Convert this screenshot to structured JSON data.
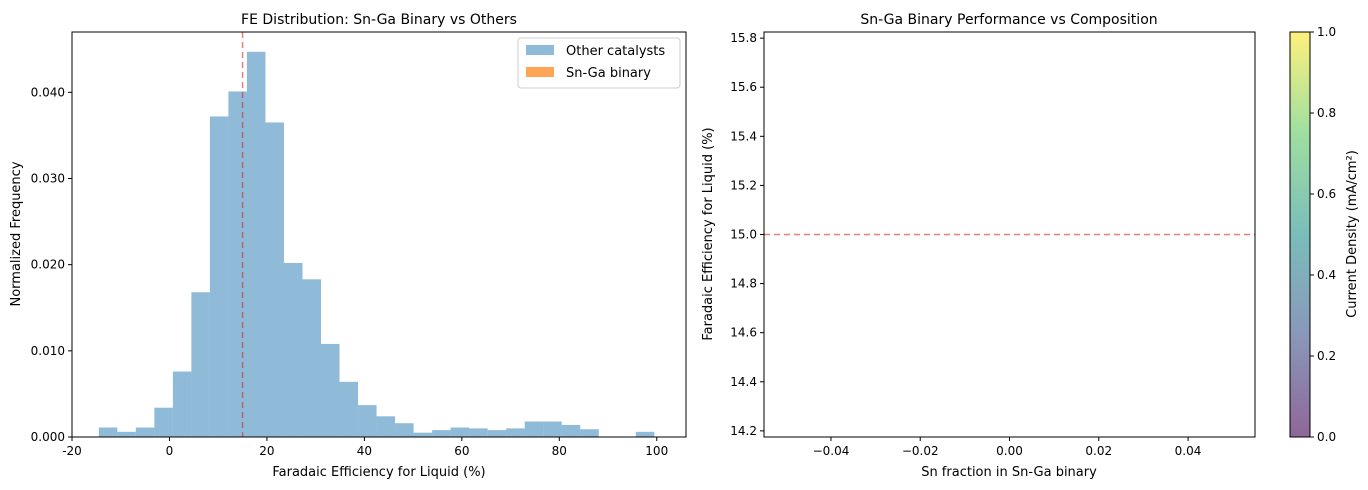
{
  "chart_data": [
    {
      "type": "bar",
      "title": "FE Distribution: Sn-Ga Binary vs Others",
      "xlabel": "Faradaic Efficiency for Liquid (%)",
      "ylabel": "Normalized Frequency",
      "xlim": [
        -20,
        106
      ],
      "ylim": [
        0,
        0.047
      ],
      "xticks": [
        -20,
        0,
        20,
        40,
        60,
        80,
        100
      ],
      "yticks": [
        0.0,
        0.01,
        0.02,
        0.03,
        0.04
      ],
      "ytick_labels": [
        "0.000",
        "0.010",
        "0.020",
        "0.030",
        "0.040"
      ],
      "grid": false,
      "legend_position": "top-right",
      "bin_width": 3.8,
      "bins": [
        {
          "x0": -14.5,
          "value": 0.0011
        },
        {
          "x0": -10.7,
          "value": 0.0006
        },
        {
          "x0": -6.9,
          "value": 0.0011
        },
        {
          "x0": -3.1,
          "value": 0.0034
        },
        {
          "x0": 0.7,
          "value": 0.0076
        },
        {
          "x0": 4.5,
          "value": 0.0168
        },
        {
          "x0": 8.3,
          "value": 0.0372
        },
        {
          "x0": 12.1,
          "value": 0.0401
        },
        {
          "x0": 15.9,
          "value": 0.0447
        },
        {
          "x0": 19.7,
          "value": 0.0365
        },
        {
          "x0": 23.5,
          "value": 0.0202
        },
        {
          "x0": 27.3,
          "value": 0.0183
        },
        {
          "x0": 31.1,
          "value": 0.0108
        },
        {
          "x0": 34.9,
          "value": 0.0064
        },
        {
          "x0": 38.7,
          "value": 0.0037
        },
        {
          "x0": 42.5,
          "value": 0.0024
        },
        {
          "x0": 46.3,
          "value": 0.0016
        },
        {
          "x0": 50.1,
          "value": 0.0005
        },
        {
          "x0": 53.9,
          "value": 0.0008
        },
        {
          "x0": 57.7,
          "value": 0.0011
        },
        {
          "x0": 61.5,
          "value": 0.001
        },
        {
          "x0": 65.3,
          "value": 0.0008
        },
        {
          "x0": 69.1,
          "value": 0.001
        },
        {
          "x0": 72.9,
          "value": 0.0018
        },
        {
          "x0": 76.7,
          "value": 0.0018
        },
        {
          "x0": 80.5,
          "value": 0.0014
        },
        {
          "x0": 84.3,
          "value": 0.0009
        },
        {
          "x0": 95.7,
          "value": 0.0006
        }
      ],
      "series": [
        {
          "name": "Other catalysts",
          "color": "#1f77b4",
          "alpha": 0.5
        },
        {
          "name": "Sn-Ga binary",
          "color": "#ff7f0e",
          "alpha": 0.7
        }
      ],
      "reference_line": {
        "x": 15,
        "color": "#d62728",
        "style": "dashed"
      }
    },
    {
      "type": "scatter",
      "title": "Sn-Ga Binary Performance vs Composition",
      "xlabel": "Sn fraction in Sn-Ga binary",
      "ylabel": "Faradaic Efficiency for Liquid (%)",
      "xlim": [
        -0.055,
        0.055
      ],
      "ylim": [
        14.175,
        15.825
      ],
      "xticks": [
        -0.04,
        -0.02,
        0.0,
        0.02,
        0.04
      ],
      "xtick_labels": [
        "−0.04",
        "−0.02",
        "0.00",
        "0.02",
        "0.04"
      ],
      "yticks": [
        14.2,
        14.4,
        14.6,
        14.8,
        15.0,
        15.2,
        15.4,
        15.6,
        15.8
      ],
      "ytick_labels": [
        "14.2",
        "14.4",
        "14.6",
        "14.8",
        "15.0",
        "15.2",
        "15.4",
        "15.6",
        "15.8"
      ],
      "grid": false,
      "points": [],
      "reference_line": {
        "y": 15,
        "color": "#d62728",
        "style": "dashed"
      },
      "colorbar": {
        "label": "Current Density (mA/cm²)",
        "range": [
          0,
          1
        ],
        "ticks": [
          "0.0",
          "0.2",
          "0.4",
          "0.6",
          "0.8",
          "1.0"
        ],
        "colormap_stops": [
          "#440154",
          "#3b528b",
          "#21918c",
          "#5ec962",
          "#fde725"
        ],
        "alpha": 0.6
      }
    }
  ]
}
